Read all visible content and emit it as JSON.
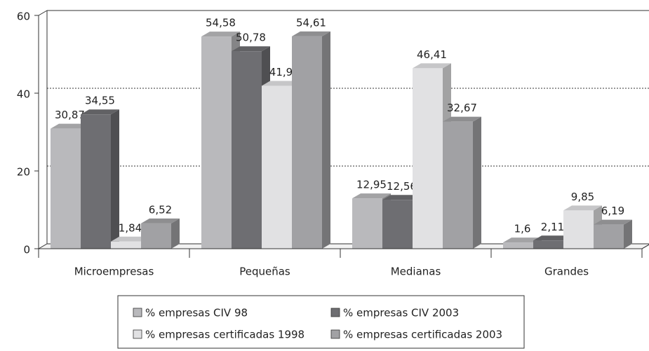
{
  "chart_data": {
    "type": "bar3d",
    "categories": [
      "Microempresas",
      "Pequeñas",
      "Medianas",
      "Grandes"
    ],
    "series": [
      {
        "name": "% empresas CIV 98",
        "color": "#b9b9bc",
        "values": [
          30.87,
          54.58,
          12.95,
          1.6
        ],
        "value_labels": [
          "30,87",
          "54,58",
          "12,95",
          "1,6"
        ]
      },
      {
        "name": "% empresas CIV 2003",
        "color": "#6e6e72",
        "values": [
          34.55,
          50.78,
          12.56,
          2.11
        ],
        "value_labels": [
          "34,55",
          "50,78",
          "12,56",
          "2,11"
        ]
      },
      {
        "name": "% empresas certificadas 1998",
        "color": "#e1e1e3",
        "values": [
          1.84,
          41.9,
          46.41,
          9.85
        ],
        "value_labels": [
          "1,84",
          "41,9",
          "46,41",
          "9,85"
        ]
      },
      {
        "name": "% empresas certificadas 2003",
        "color": "#a1a1a4",
        "values": [
          6.52,
          54.61,
          32.67,
          6.19
        ],
        "value_labels": [
          "6,52",
          "54,61",
          "32,67",
          "6,19"
        ]
      }
    ],
    "ylim": [
      0,
      60
    ],
    "yticks": [
      0,
      20,
      40,
      60
    ],
    "grid": true
  }
}
